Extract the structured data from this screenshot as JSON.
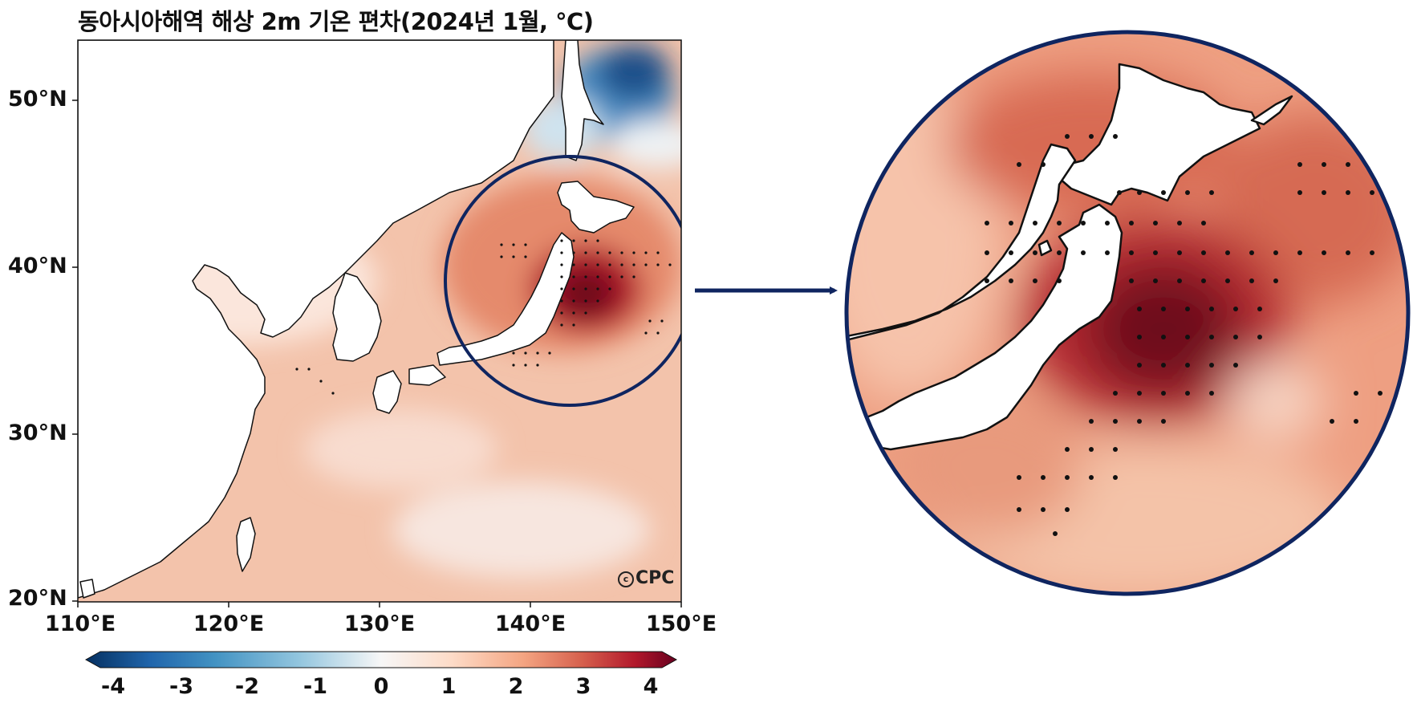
{
  "title": "동아시아해역 해상 2m 기온 편차(2024년 1월, ℃)",
  "credit": "CPC",
  "axes": {
    "lat_labels": [
      "50°N",
      "40°N",
      "30°N",
      "20°N"
    ],
    "lon_labels": [
      "110°E",
      "120°E",
      "130°E",
      "140°E",
      "150°E"
    ]
  },
  "colorbar": {
    "labels": [
      "-4",
      "-3",
      "-2",
      "-1",
      "0",
      "1",
      "2",
      "3",
      "4"
    ],
    "colors": [
      "#053061",
      "#2166ac",
      "#4393c3",
      "#92c5de",
      "#f7f7f7",
      "#fddbc7",
      "#f4a582",
      "#d6604d",
      "#b2182b",
      "#67001f"
    ]
  },
  "map": {
    "extent_lon": [
      110,
      150
    ],
    "extent_lat": [
      20,
      53.5
    ],
    "base_color": "#f3c3ab",
    "land_color": "#ffffff",
    "coastline_color": "#111111",
    "highlight_circle_color": "#0f2560",
    "arrow_color": "#0f2560"
  }
}
